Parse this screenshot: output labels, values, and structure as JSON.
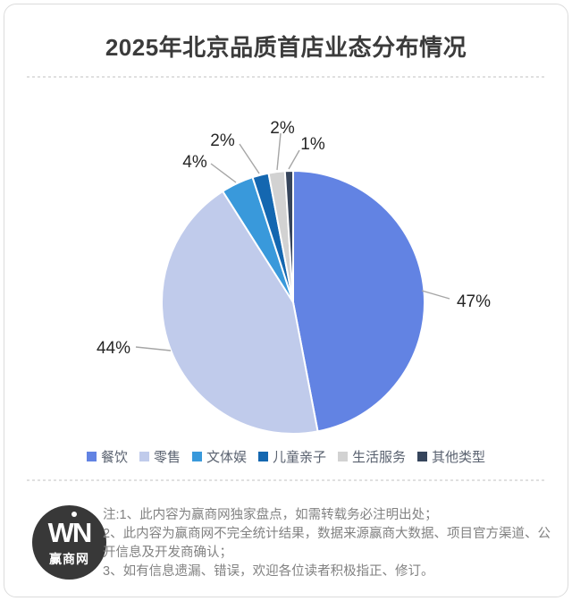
{
  "page": {
    "title": "2025年北京品质首店业态分布情况"
  },
  "chart_data": {
    "type": "pie",
    "title": "2025年北京品质首店业态分布情况",
    "unit": "%",
    "start_angle_deg": 0,
    "direction": "clockwise",
    "legend_position": "bottom",
    "series": [
      {
        "name": "餐饮",
        "value": 47,
        "label": "47%",
        "color": "#6283E3"
      },
      {
        "name": "零售",
        "value": 44,
        "label": "44%",
        "color": "#C0CBEB"
      },
      {
        "name": "文体娱",
        "value": 4,
        "label": "4%",
        "color": "#3999DB"
      },
      {
        "name": "儿童亲子",
        "value": 2,
        "label": "2%",
        "color": "#1467B0"
      },
      {
        "name": "生活服务",
        "value": 2,
        "label": "2%",
        "color": "#D2D2D2"
      },
      {
        "name": "其他类型",
        "value": 1,
        "label": "1%",
        "color": "#36455C"
      }
    ]
  },
  "footer": {
    "notes": [
      "注:1、此内容为赢商网独家盘点，如需转载务必注明出处；",
      "2、此内容为赢商网不完全统计结果，数据来源赢商大数据、项目官方渠道、公开信息及开发商确认；",
      "3、如有信息遗漏、错误，欢迎各位读者积极指正、修订。"
    ],
    "logo": {
      "wordmark": "WN",
      "caption": "赢商网"
    }
  }
}
